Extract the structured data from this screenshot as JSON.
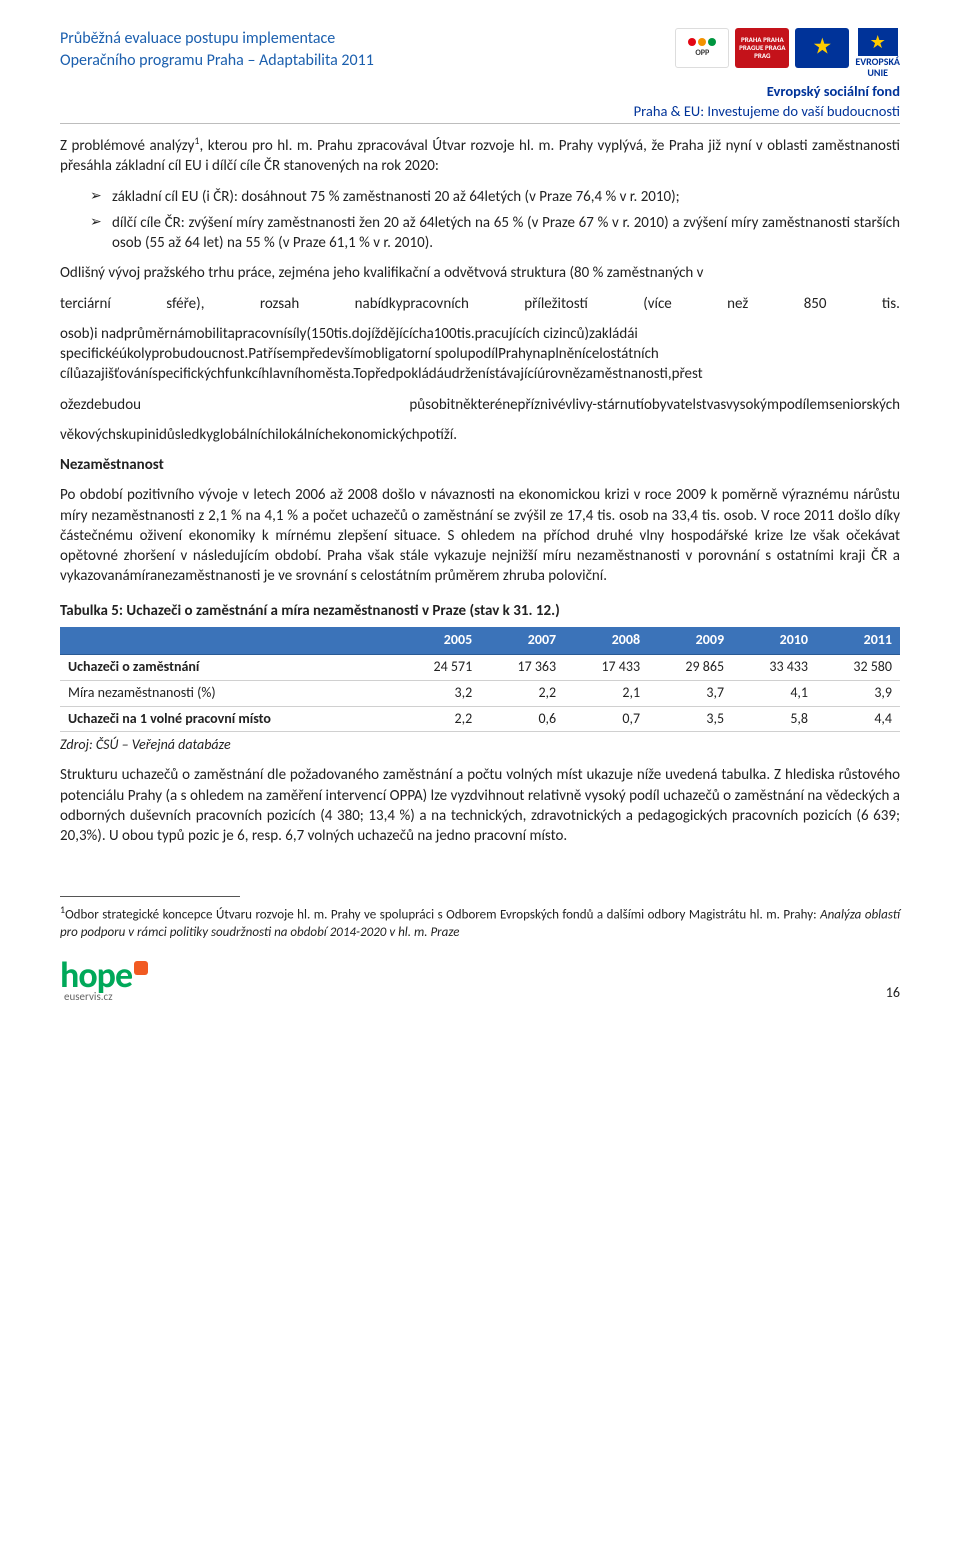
{
  "header": {
    "title_line1": "Průběžná evaluace postupu implementace",
    "title_line2": "Operačního programu Praha – Adaptabilita 2011",
    "fund": "Evropský sociální fond",
    "tagline": "Praha & EU: Investujeme do vaší budoucnosti",
    "logo_oppa_text": "OPP",
    "logo_oppa_sub": "A",
    "logo_praha_text": "PRAHA PRAHA PRAGUE PRAGA PRAG",
    "logo_eu_text1": "EVROPSKÁ",
    "logo_eu_text2": "UNIE"
  },
  "p1": "Z problémové analýzy",
  "p1_sup": "1",
  "p1b": ", kterou pro hl. m. Prahu zpracovával Útvar rozvoje hl. m. Prahy vyplývá, že Praha již nyní v oblasti zaměstnanosti přesáhla základní cíl EU i dílčí cíle ČR stanovených na rok 2020:",
  "bullets": [
    "základní cíl EU (i ČR): dosáhnout 75 % zaměstnanosti 20 až 64letých (v Praze 76,4 % v r. 2010);",
    "dílčí cíle ČR: zvýšení míry zaměstnanosti žen 20 až 64letých na 65 % (v Praze 67 % v r. 2010) a zvýšení míry zaměstnanosti starších osob (55 až 64 let) na 55 % (v Praze 61,1 % v r. 2010)."
  ],
  "spread": {
    "left": "terciární",
    "c1": "sféře),",
    "c2": "rozsah",
    "c3": "nabídkypracovních",
    "c4": "příležitostí",
    "c5": "(více",
    "c6": "než",
    "c7": "850",
    "right": "tis."
  },
  "p2a": "Odlišný vývoj pražského trhu práce, zejména jeho kvalifikační a odvětvová struktura (80 % zaměstnaných v",
  "p2c": "osob)i nadprůměrnámobilitapracovnísíly(150tis.dojíždějícícha100tis.pracujících cizinců)zakládái specifickéúkolyprobudoucnost.Patřísempředevšímobligatorní spolupodílPrahynaplněnícelostátních cílůazajišťováníspecifickýchfunkcíhlavníhoměsta.Topředpokládáudrženístávajícíúrovnězaměstnanosti,přest",
  "spread2": {
    "left": "ožezdebudou",
    "right": "působitněkterénepříznivévlivy-stárnutíobyvatelstvasvysokýmpodílemseniorských"
  },
  "p2d": "věkovýchskupinidůsledkyglobálníchilokálníchekonomickýchpotíží.",
  "nez_title": "Nezaměstnanost",
  "p3": "Po období pozitivního vývoje v letech 2006 až 2008 došlo v návaznosti na ekonomickou krizi v roce 2009 k poměrně výraznému nárůstu míry nezaměstnanosti z 2,1 % na 4,1 % a počet uchazečů o zaměstnání se zvýšil ze 17,4 tis. osob na 33,4 tis. osob. V roce 2011 došlo díky částečnému oživení ekonomiky k mírnému zlepšení situace. S ohledem na příchod druhé vlny hospodářské krize lze však očekávat opětovné zhoršení v následujícím období. Praha však stále vykazuje nejnižší míru nezaměstnanosti v porovnání s ostatními kraji ČR a vykazovanámíranezaměstnanosti je ve srovnání s celostátním průměrem zhruba poloviční.",
  "table": {
    "title": "Tabulka 5: Uchazeči o zaměstnání a míra nezaměstnanosti v Praze (stav k 31. 12.)",
    "columns": [
      "",
      "2005",
      "2007",
      "2008",
      "2009",
      "2010",
      "2011"
    ],
    "rows": [
      [
        "Uchazeči o zaměstnání",
        "24 571",
        "17 363",
        "17 433",
        "29 865",
        "33 433",
        "32 580"
      ],
      [
        "Míra nezaměstnanosti (%)",
        "3,2",
        "2,2",
        "2,1",
        "3,7",
        "4,1",
        "3,9"
      ],
      [
        "Uchazeči na 1 volné pracovní místo",
        "2,2",
        "0,6",
        "0,7",
        "3,5",
        "5,8",
        "4,4"
      ]
    ],
    "source": "Zdroj: ČSÚ – Veřejná databáze",
    "header_bg": "#3b73b9",
    "header_fg": "#ffffff",
    "border_color": "#d0d0d0"
  },
  "p4": "Strukturu uchazečů o zaměstnání dle požadovaného zaměstnání a počtu volných míst ukazuje níže uvedená tabulka. Z hlediska růstového potenciálu Prahy (a s ohledem na zaměření intervencí OPPA) lze vyzdvihnout relativně vysoký podíl uchazečů o zaměstnání na vědeckých a odborných duševních pracovních pozicích (4 380; 13,4 %) a na technických, zdravotnických a pedagogických pracovních pozicích (6 639; 20,3%). U obou typů pozic je 6, resp. 6,7 volných uchazečů na jedno pracovní místo.",
  "footnote": {
    "sup": "1",
    "a": "Odbor strategické koncepce Útvaru rozvoje hl. m. Prahy ve spolupráci s Odborem Evropských fondů a dalšími odbory Magistrátu hl. m. Prahy: ",
    "b": "Analýza oblastí pro podporu v rámci politiky soudržnosti na období 2014-2020 v hl. m. Praze"
  },
  "footer": {
    "hope": "hope",
    "hope_sub": "euservis.cz",
    "page": "16"
  }
}
